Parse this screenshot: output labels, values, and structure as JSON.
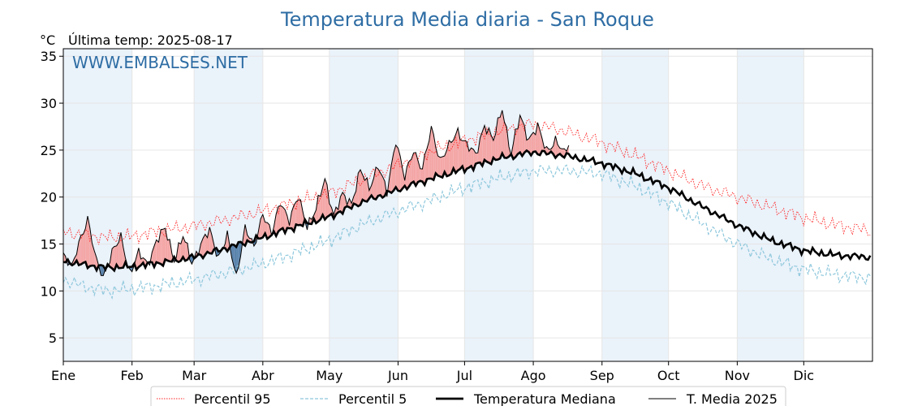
{
  "chart_data": {
    "type": "line",
    "title": "Temperatura Media diaria - San Roque",
    "ylabel": "°C",
    "subtitle": "Última temp: 2025-08-17",
    "watermark": "WWW.EMBALSES.NET",
    "ylim": [
      2.5,
      35.8
    ],
    "yticks": [
      5,
      10,
      15,
      20,
      25,
      30,
      35
    ],
    "months": [
      "Ene",
      "Feb",
      "Mar",
      "Abr",
      "May",
      "Jun",
      "Jul",
      "Ago",
      "Sep",
      "Oct",
      "Nov",
      "Dic"
    ],
    "month_start_days": [
      1,
      32,
      60,
      91,
      121,
      152,
      182,
      213,
      244,
      274,
      305,
      335
    ],
    "x_days_in_year": 365,
    "grid": true,
    "legend_position": "bottom",
    "colors": {
      "p95": "#ff2020",
      "p5": "#8ec8dc",
      "median": "#000000",
      "current": "#000000",
      "above_fill": "#f4a7a7",
      "below_fill": "#5b84ad",
      "month_band": "#eaf2fa"
    },
    "series": [
      {
        "name": "Percentil 95",
        "style": "dotted",
        "days": [
          1,
          10,
          20,
          32,
          45,
          60,
          75,
          91,
          105,
          121,
          135,
          152,
          166,
          182,
          197,
          213,
          228,
          244,
          259,
          274,
          289,
          305,
          320,
          335,
          350,
          365
        ],
        "values": [
          16.3,
          16.0,
          15.7,
          15.8,
          16.4,
          16.9,
          17.6,
          18.5,
          19.4,
          20.4,
          21.8,
          23.4,
          24.8,
          26.0,
          27.0,
          27.8,
          27.0,
          25.8,
          24.4,
          22.8,
          21.2,
          20.0,
          18.9,
          17.8,
          17.0,
          16.4
        ]
      },
      {
        "name": "Percentil 5",
        "style": "dashed",
        "days": [
          1,
          10,
          20,
          32,
          45,
          60,
          75,
          91,
          105,
          121,
          135,
          152,
          166,
          182,
          197,
          213,
          228,
          244,
          259,
          274,
          289,
          305,
          320,
          335,
          350,
          365
        ],
        "values": [
          11.2,
          10.5,
          10.0,
          10.2,
          10.6,
          11.2,
          12.0,
          12.9,
          14.0,
          15.4,
          17.0,
          18.5,
          19.6,
          21.0,
          22.0,
          22.8,
          22.8,
          22.5,
          21.2,
          19.4,
          17.2,
          15.0,
          13.4,
          12.3,
          11.7,
          11.4
        ]
      },
      {
        "name": "Temperatura Mediana",
        "style": "solid-thick",
        "days": [
          1,
          10,
          20,
          32,
          45,
          60,
          75,
          91,
          105,
          121,
          135,
          152,
          166,
          182,
          197,
          213,
          228,
          244,
          259,
          274,
          289,
          305,
          320,
          335,
          350,
          365
        ],
        "values": [
          13.2,
          12.8,
          12.5,
          12.6,
          13.0,
          13.6,
          14.6,
          15.7,
          16.8,
          17.9,
          19.4,
          20.8,
          21.9,
          23.0,
          24.1,
          24.8,
          24.4,
          23.6,
          22.5,
          21.0,
          19.0,
          17.0,
          15.4,
          14.3,
          13.8,
          13.6
        ]
      },
      {
        "name": "T. Media 2025",
        "style": "solid-thin",
        "days": [
          1,
          5,
          8,
          12,
          16,
          19,
          23,
          27,
          31,
          35,
          39,
          43,
          47,
          51,
          55,
          59,
          63,
          67,
          71,
          75,
          79,
          83,
          87,
          91,
          95,
          99,
          103,
          107,
          111,
          115,
          119,
          123,
          127,
          131,
          135,
          139,
          143,
          147,
          151,
          155,
          159,
          163,
          167,
          171,
          175,
          179,
          183,
          187,
          191,
          195,
          199,
          203,
          207,
          211,
          215,
          219,
          223,
          227,
          229
        ],
        "values": [
          14.0,
          12.5,
          15.0,
          17.8,
          13.0,
          11.5,
          14.2,
          15.6,
          12.0,
          14.0,
          12.8,
          15.4,
          16.6,
          13.4,
          15.8,
          13.0,
          15.0,
          16.4,
          13.6,
          15.8,
          11.5,
          16.8,
          14.5,
          18.4,
          16.0,
          19.6,
          17.5,
          20.0,
          17.0,
          18.6,
          22.0,
          18.0,
          20.2,
          19.4,
          22.8,
          21.0,
          23.4,
          20.4,
          26.2,
          22.0,
          25.0,
          23.0,
          27.2,
          24.0,
          25.4,
          27.0,
          25.6,
          24.4,
          27.8,
          26.0,
          29.5,
          24.6,
          28.6,
          26.2,
          27.4,
          25.0,
          26.0,
          24.6,
          25.8
        ]
      }
    ]
  },
  "legend": {
    "items": [
      {
        "label": "Percentil 95"
      },
      {
        "label": "Percentil 5"
      },
      {
        "label": "Temperatura Mediana"
      },
      {
        "label": "T. Media 2025"
      }
    ]
  }
}
